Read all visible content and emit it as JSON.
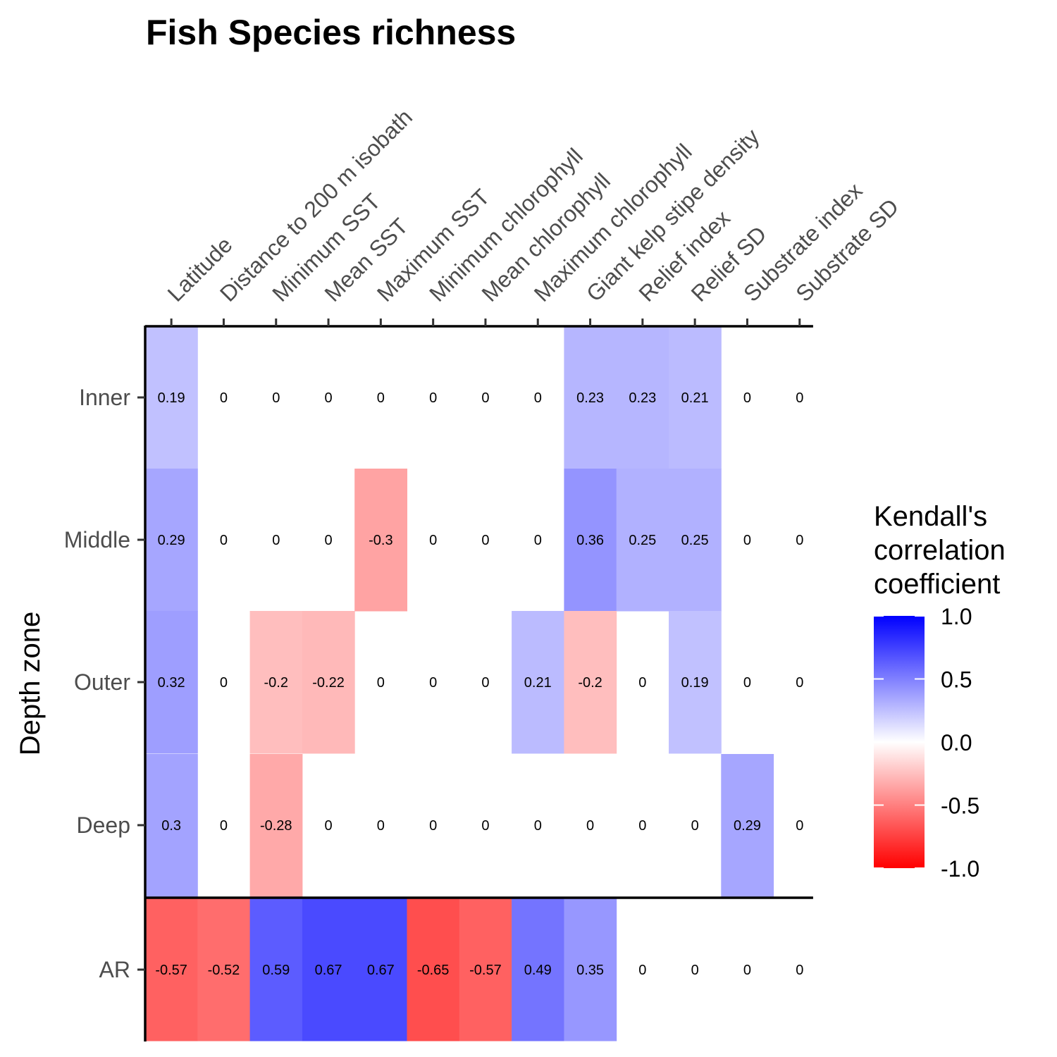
{
  "chart_data": {
    "type": "heatmap",
    "title": "Fish  Species richness",
    "ylabel": "Depth zone",
    "xlabel": "",
    "columns": [
      "Latitude",
      "Distance to 200 m isobath",
      "Minimum SST",
      "Mean SST",
      "Maximum SST",
      "Minimum chlorophyll",
      "Mean chlorophyll",
      "Maximum chlorophyll",
      "Giant kelp stipe density",
      "Relief index",
      "Relief SD",
      "Substrate index",
      "Substrate SD"
    ],
    "rows": [
      "Inner",
      "Middle",
      "Outer",
      "Deep",
      "AR"
    ],
    "values": [
      [
        0.19,
        0,
        0,
        0,
        0,
        0,
        0,
        0,
        0.23,
        0.23,
        0.21,
        0,
        0
      ],
      [
        0.29,
        0,
        0,
        0,
        -0.3,
        0,
        0,
        0,
        0.36,
        0.25,
        0.25,
        0,
        0
      ],
      [
        0.32,
        0,
        -0.2,
        -0.22,
        0,
        0,
        0,
        0.21,
        -0.2,
        0,
        0.19,
        0,
        0
      ],
      [
        0.3,
        0,
        -0.28,
        0,
        0,
        0,
        0,
        0,
        0,
        0,
        0,
        0.29,
        0
      ],
      [
        -0.57,
        -0.52,
        0.59,
        0.67,
        0.67,
        -0.65,
        -0.57,
        0.49,
        0.35,
        0,
        0,
        0,
        0
      ]
    ],
    "legend": {
      "title_lines": [
        "Kendall's",
        "correlation",
        "coefficient"
      ],
      "ticks": [
        "1.0",
        "0.5",
        "0.0",
        "-0.5",
        "-1.0"
      ],
      "tick_values": [
        1,
        0.5,
        0,
        -0.5,
        -1
      ],
      "range": [
        -1,
        1
      ],
      "colors": {
        "low": "#ff0000",
        "mid": "#ffffff",
        "high": "#0000ff"
      },
      "placement": "right"
    }
  }
}
